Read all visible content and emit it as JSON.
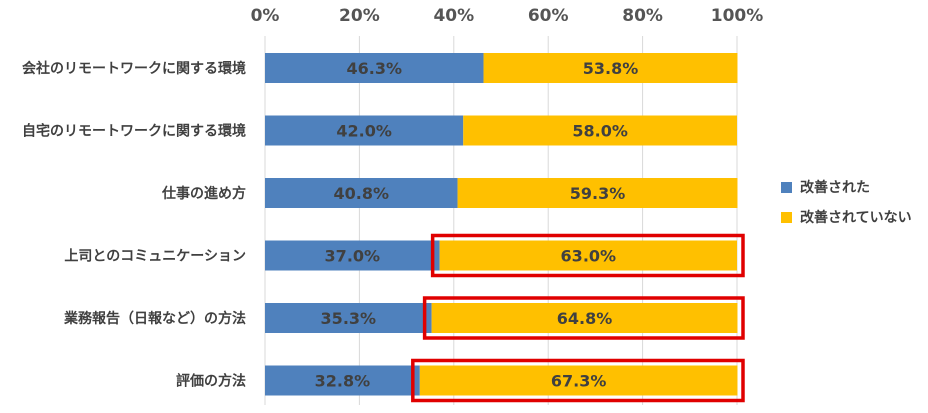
{
  "chart_data": {
    "type": "bar",
    "orientation": "horizontal",
    "stacked": true,
    "categories": [
      "会社のリモートワークに関する環境",
      "自宅のリモートワークに関する環境",
      "仕事の進め方",
      "上司とのコミュニケーション",
      "業務報告（日報など）の方法",
      "評価の方法"
    ],
    "series": [
      {
        "name": "改善された",
        "values": [
          46.3,
          42.0,
          40.8,
          37.0,
          35.3,
          32.8
        ],
        "color": "#4F81BD"
      },
      {
        "name": "改善されていない",
        "values": [
          53.8,
          58.0,
          59.3,
          63.0,
          64.8,
          67.3
        ],
        "color": "#FFC000"
      }
    ],
    "data_labels": [
      [
        "46.3%",
        "42.0%",
        "40.8%",
        "37.0%",
        "35.3%",
        "32.8%"
      ],
      [
        "53.8%",
        "58.0%",
        "59.3%",
        "63.0%",
        "64.8%",
        "67.3%"
      ]
    ],
    "xlim": [
      0,
      100
    ],
    "xticks": [
      "0%",
      "20%",
      "40%",
      "60%",
      "80%",
      "100%"
    ],
    "axis_position": "top",
    "grid": true,
    "legend_position": "right",
    "highlighted_categories": [
      3,
      4,
      5
    ],
    "highlight_color": "#E00000"
  }
}
